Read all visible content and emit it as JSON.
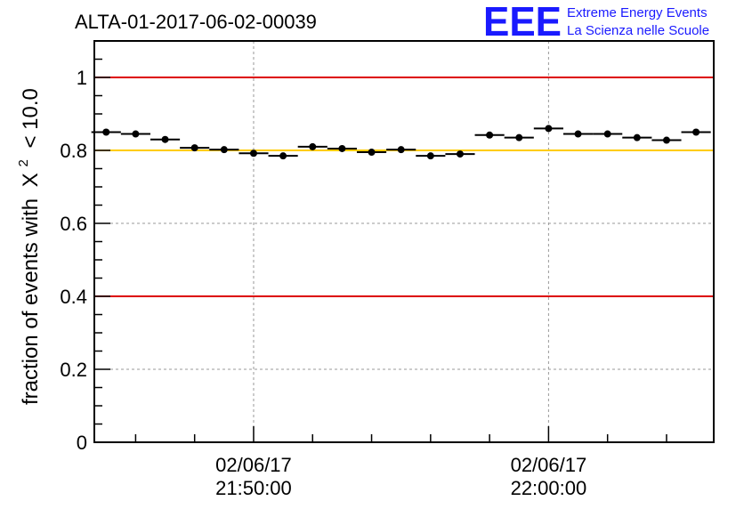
{
  "chart_data": {
    "type": "scatter",
    "title": "ALTA-01-2017-06-02-00039",
    "logo": {
      "mark": "EEE",
      "line1": "Extreme Energy Events",
      "line2": "La Scienza nelle Scuole"
    },
    "ylabel": "fraction of events with",
    "ylabel_symbol": "X",
    "ylabel_superscript": "2",
    "ylabel_tail": "< 10.0",
    "ylim": [
      0,
      1.1
    ],
    "yticks": [
      {
        "value": 0,
        "label": "0"
      },
      {
        "value": 0.2,
        "label": "0.2"
      },
      {
        "value": 0.4,
        "label": "0.4"
      },
      {
        "value": 0.6,
        "label": "0.6"
      },
      {
        "value": 0.8,
        "label": "0.8"
      },
      {
        "value": 1.0,
        "label": "1"
      }
    ],
    "xlim": [
      -5.4,
      15.6
    ],
    "xlim_unit": "minutes after 21:50:00",
    "xticks": [
      {
        "value": 0,
        "date": "02/06/17",
        "time": "21:50:00"
      },
      {
        "value": 10,
        "date": "02/06/17",
        "time": "22:00:00"
      }
    ],
    "x_bin_width": 1,
    "points": [
      {
        "x": -5,
        "y": 0.85
      },
      {
        "x": -4,
        "y": 0.845
      },
      {
        "x": -3,
        "y": 0.83
      },
      {
        "x": -2,
        "y": 0.807
      },
      {
        "x": -1,
        "y": 0.802
      },
      {
        "x": 0,
        "y": 0.792
      },
      {
        "x": 1,
        "y": 0.785
      },
      {
        "x": 2,
        "y": 0.81
      },
      {
        "x": 3,
        "y": 0.805
      },
      {
        "x": 4,
        "y": 0.795
      },
      {
        "x": 5,
        "y": 0.802
      },
      {
        "x": 6,
        "y": 0.785
      },
      {
        "x": 7,
        "y": 0.79
      },
      {
        "x": 8,
        "y": 0.842
      },
      {
        "x": 9,
        "y": 0.835
      },
      {
        "x": 10,
        "y": 0.86
      },
      {
        "x": 11,
        "y": 0.845
      },
      {
        "x": 12,
        "y": 0.845
      },
      {
        "x": 13,
        "y": 0.835
      },
      {
        "x": 14,
        "y": 0.828
      },
      {
        "x": 15,
        "y": 0.85
      }
    ],
    "reference_lines": [
      {
        "y": 1.0,
        "color": "#dd0000"
      },
      {
        "y": 0.8,
        "color": "#ffcc00"
      },
      {
        "y": 0.4,
        "color": "#dd0000"
      }
    ],
    "grid": true,
    "colors": {
      "marker": "#000000",
      "grid": "#999999"
    }
  }
}
